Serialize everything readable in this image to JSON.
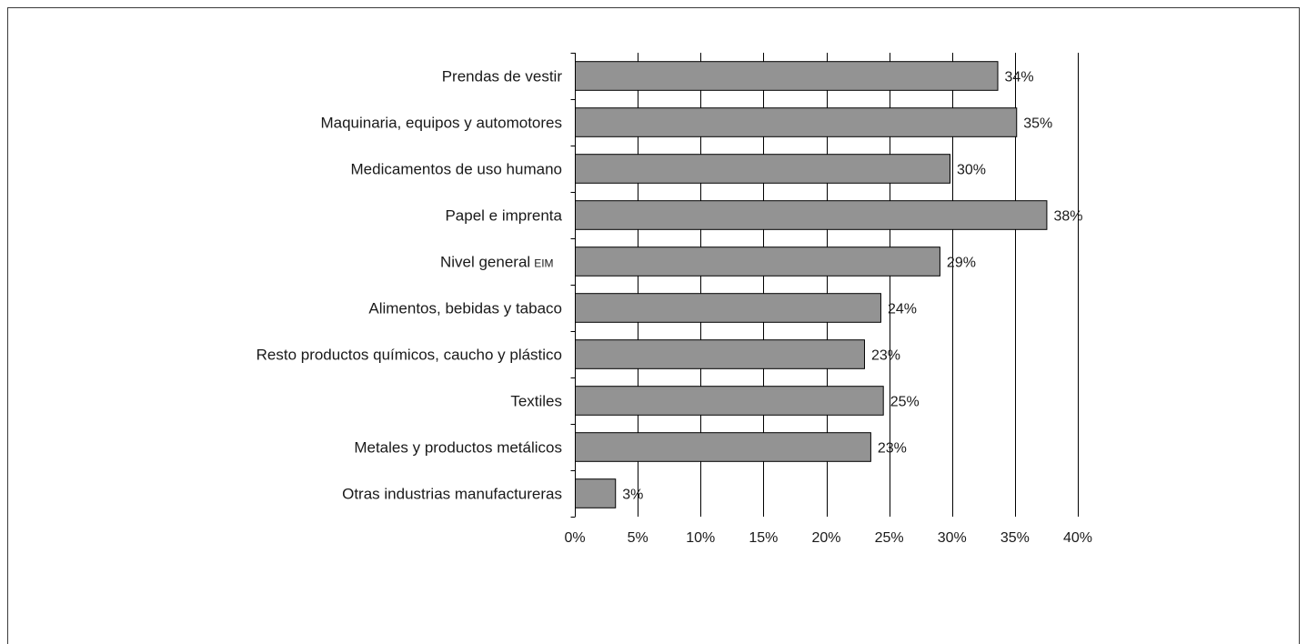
{
  "chart_data": {
    "type": "bar",
    "orientation": "horizontal",
    "title": "",
    "xlabel": "",
    "ylabel": "",
    "categories": [
      {
        "label": "Prendas de vestir",
        "suffix": ""
      },
      {
        "label": "Maquinaria, equipos y automotores",
        "suffix": ""
      },
      {
        "label": "Medicamentos de uso humano",
        "suffix": ""
      },
      {
        "label": "Papel e imprenta",
        "suffix": ""
      },
      {
        "label": "Nivel general",
        "suffix": "EIM"
      },
      {
        "label": "Alimentos, bebidas y tabaco",
        "suffix": ""
      },
      {
        "label": "Resto productos químicos, caucho y plástico",
        "suffix": ""
      },
      {
        "label": "Textiles",
        "suffix": ""
      },
      {
        "label": "Metales y productos metálicos",
        "suffix": ""
      },
      {
        "label": "Otras industrias manufactureras",
        "suffix": ""
      }
    ],
    "values": [
      33.6,
      35.1,
      29.8,
      37.5,
      29.0,
      24.3,
      23.0,
      24.5,
      23.5,
      3.2
    ],
    "data_labels": [
      "34%",
      "35%",
      "30%",
      "38%",
      "29%",
      "24%",
      "23%",
      "25%",
      "23%",
      "3%"
    ],
    "xlim": [
      0,
      40
    ],
    "xticks": [
      0,
      5,
      10,
      15,
      20,
      25,
      30,
      35,
      40
    ],
    "xtick_labels": [
      "0%",
      "5%",
      "10%",
      "15%",
      "20%",
      "25%",
      "30%",
      "35%",
      "40%"
    ],
    "grid": true,
    "legend": "none",
    "bar_color": "#939393",
    "bar_edge_color": "#000000"
  }
}
